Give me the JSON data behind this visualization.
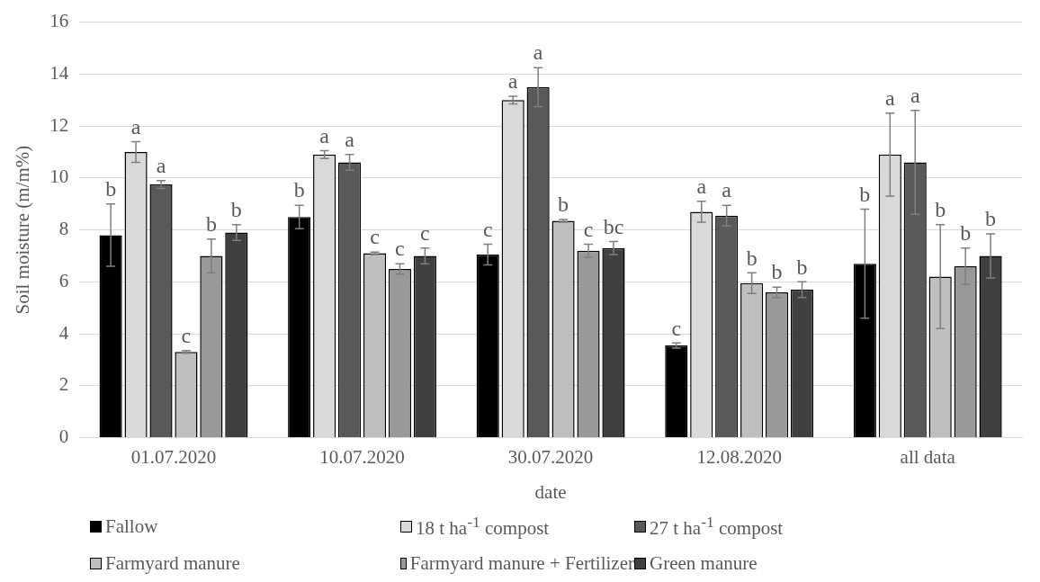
{
  "chart_data": {
    "type": "bar",
    "xlabel": "date",
    "ylabel": "Soil moisture (m/m%)",
    "categories": [
      "01.07.2020",
      "10.07.2020",
      "30.07.2020",
      "12.08.2020",
      "all data"
    ],
    "ylim": [
      0,
      16
    ],
    "yticks": [
      0,
      2,
      4,
      6,
      8,
      10,
      12,
      14,
      16
    ],
    "grid": "y",
    "legend": "bottom",
    "series": [
      {
        "name": "Fallow",
        "color": "#000000",
        "values": [
          7.8,
          8.5,
          7.05,
          3.55,
          6.7
        ],
        "errors": [
          1.2,
          0.45,
          0.4,
          0.1,
          2.1
        ],
        "value_labels": [
          "b",
          "b",
          "c",
          "c",
          "b"
        ]
      },
      {
        "name": "18 t ha$^{-1}$ compost",
        "color": "#d9d9d9",
        "values": [
          11.0,
          10.9,
          13.0,
          8.7,
          10.9
        ],
        "errors": [
          0.4,
          0.15,
          0.15,
          0.4,
          1.6
        ],
        "value_labels": [
          "a",
          "a",
          "a",
          "a",
          "a"
        ]
      },
      {
        "name": "27 t ha$^{-1}$ compost",
        "color": "#595959",
        "values": [
          9.75,
          10.6,
          13.5,
          8.55,
          10.6
        ],
        "errors": [
          0.15,
          0.3,
          0.75,
          0.4,
          2.0
        ],
        "value_labels": [
          "a",
          "a",
          "a",
          "a",
          "a"
        ]
      },
      {
        "name": "Farmyard manure",
        "color": "#bfbfbf",
        "values": [
          3.3,
          7.1,
          8.35,
          5.95,
          6.2
        ],
        "errors": [
          0.05,
          0.05,
          0.05,
          0.4,
          2.0
        ],
        "value_labels": [
          "c",
          "c",
          "b",
          "b",
          "b"
        ]
      },
      {
        "name": "Farmyard manure + Fertilizer",
        "color": "#999999",
        "values": [
          7.0,
          6.5,
          7.2,
          5.6,
          6.6
        ],
        "errors": [
          0.65,
          0.2,
          0.25,
          0.2,
          0.7
        ],
        "value_labels": [
          "b",
          "c",
          "c",
          "b",
          "b"
        ]
      },
      {
        "name": "Green manure",
        "color": "#404040",
        "values": [
          7.9,
          7.0,
          7.3,
          5.7,
          7.0
        ],
        "errors": [
          0.3,
          0.3,
          0.25,
          0.3,
          0.85
        ],
        "value_labels": [
          "b",
          "c",
          "bc",
          "b",
          "b"
        ]
      }
    ]
  }
}
